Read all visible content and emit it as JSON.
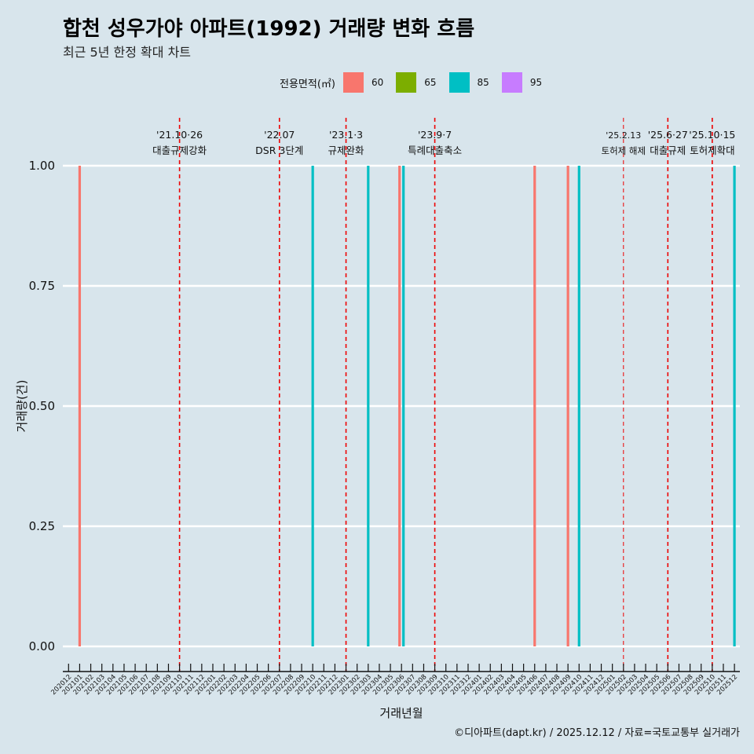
{
  "title": "합천 성우가야 아파트(1992) 거래량 변화 흐름",
  "subtitle": "최근 5년 한정 확대 차트",
  "caption": "©디아파트(dapt.kr) / 2025.12.12 / 자료=국토교통부 실거래가",
  "chart_data": {
    "type": "bar",
    "xlabel": "거래년월",
    "ylabel": "거래량(건)",
    "ylim": [
      0,
      1
    ],
    "yticks": [
      "0.00",
      "0.25",
      "0.50",
      "0.75",
      "1.00"
    ],
    "ytick_values": [
      0,
      0.25,
      0.5,
      0.75,
      1
    ],
    "legend": {
      "title": "전용면적(㎡)",
      "placement": "top",
      "entries": [
        {
          "label": "60",
          "color": "#f8766d"
        },
        {
          "label": "65",
          "color": "#7cae00"
        },
        {
          "label": "85",
          "color": "#00bfc4"
        },
        {
          "label": "95",
          "color": "#c77cff"
        }
      ]
    },
    "months": [
      "202012",
      "202101",
      "202102",
      "202103",
      "202104",
      "202105",
      "202106",
      "202107",
      "202108",
      "202109",
      "202110",
      "202111",
      "202112",
      "202201",
      "202202",
      "202203",
      "202204",
      "202205",
      "202206",
      "202207",
      "202208",
      "202209",
      "202210",
      "202211",
      "202212",
      "202301",
      "202302",
      "202303",
      "202304",
      "202305",
      "202306",
      "202307",
      "202308",
      "202309",
      "202310",
      "202311",
      "202312",
      "202401",
      "202402",
      "202403",
      "202404",
      "202405",
      "202406",
      "202407",
      "202408",
      "202409",
      "202410",
      "202411",
      "202412",
      "202501",
      "202502",
      "202503",
      "202504",
      "202505",
      "202506",
      "202507",
      "202508",
      "202509",
      "202510",
      "202511",
      "202512"
    ],
    "bars": [
      {
        "month": "202101",
        "area": "60",
        "value": 1
      },
      {
        "month": "202210",
        "area": "85",
        "value": 1
      },
      {
        "month": "202303",
        "area": "85",
        "value": 1
      },
      {
        "month": "202306",
        "area": "60",
        "value": 1
      },
      {
        "month": "202306",
        "area": "85",
        "value": 1
      },
      {
        "month": "202406",
        "area": "60",
        "value": 1
      },
      {
        "month": "202409",
        "area": "60",
        "value": 1
      },
      {
        "month": "202410",
        "area": "85",
        "value": 1
      },
      {
        "month": "202512",
        "area": "85",
        "value": 1
      }
    ],
    "events": [
      {
        "month": "202110",
        "date": "'21.10·26",
        "label": "대출규제강화"
      },
      {
        "month": "202207",
        "date": "'22.07",
        "label": "DSR 3단계"
      },
      {
        "month": "202301",
        "date": "'23.1·3",
        "label": "규제완화"
      },
      {
        "month": "202309",
        "date": "'23.9·7",
        "label": "특례대출축소"
      },
      {
        "month": "202502",
        "date": "'25.2.13",
        "label": "토허제 해제",
        "minor": true
      },
      {
        "month": "202506",
        "date": "'25.6·27",
        "label": "대출규제"
      },
      {
        "month": "202510",
        "date": "'25.10·15",
        "label": "토허제확대"
      }
    ]
  }
}
